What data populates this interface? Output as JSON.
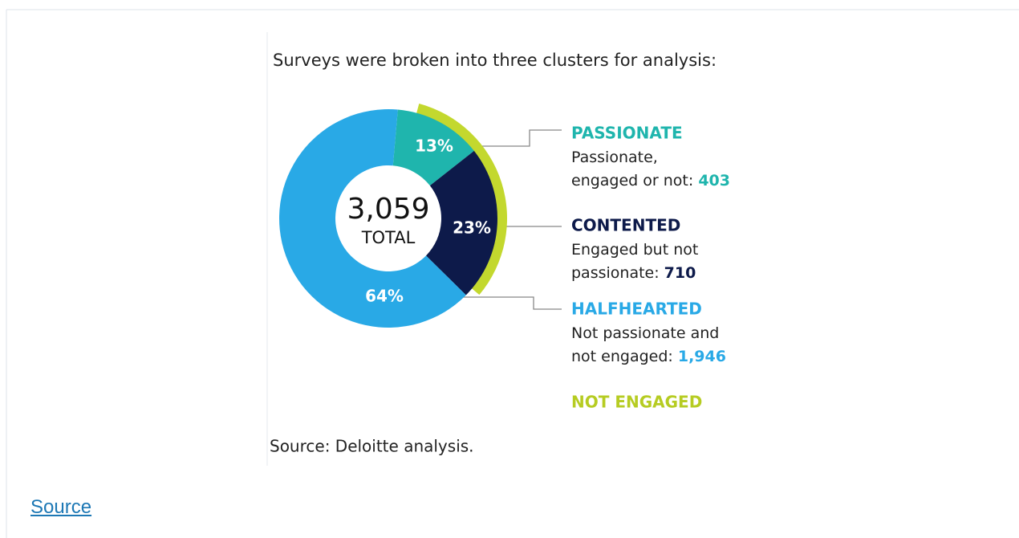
{
  "chart_data": {
    "type": "pie",
    "donut": true,
    "title": "Surveys were broken into three clusters for analysis:",
    "source": "Source: Deloitte analysis.",
    "total": 3059,
    "total_label": "3,059",
    "total_caption": "TOTAL",
    "categories": [
      "PASSIONATE",
      "CONTENTED",
      "HALFHEARTED"
    ],
    "values": [
      13,
      23,
      64
    ],
    "value_labels": [
      "13%",
      "23%",
      "64%"
    ],
    "colors": [
      "#1fb5ad",
      "#0d1a4a",
      "#29a9e6"
    ],
    "descriptions": [
      [
        "Passionate,",
        "engaged or not:"
      ],
      [
        "Engaged but not",
        "passionate:"
      ],
      [
        "Not passionate and",
        "not engaged:"
      ]
    ],
    "counts": [
      403,
      710,
      1946
    ],
    "count_labels": [
      "403",
      "710",
      "1,946"
    ],
    "extra_legend": {
      "name": "NOT ENGAGED",
      "color": "#c3d82e"
    }
  },
  "link": {
    "text": "Source"
  }
}
